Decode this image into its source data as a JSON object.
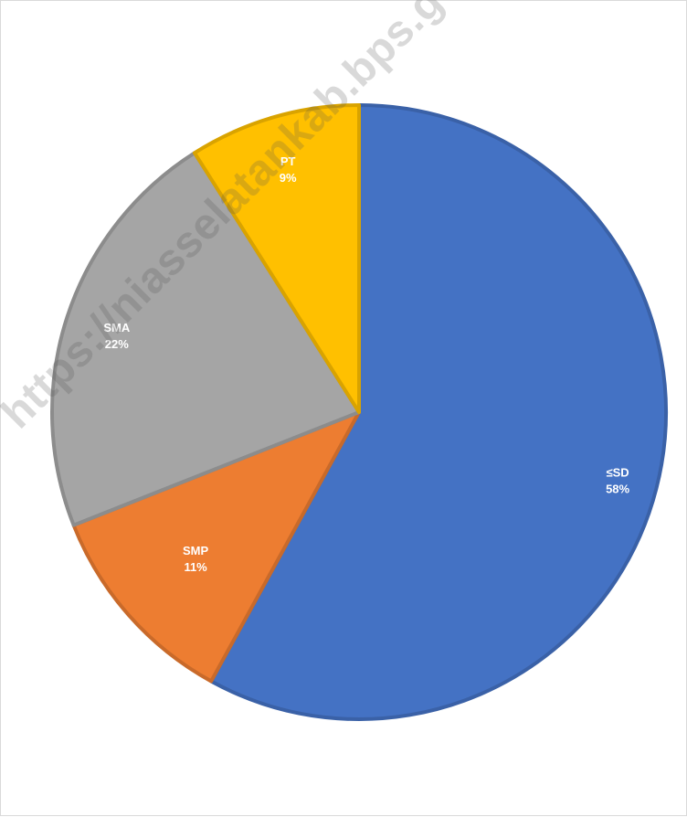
{
  "chart_data": {
    "type": "pie",
    "title": "",
    "slices": [
      {
        "name": "≤SD",
        "value": 58,
        "label": "58%",
        "color": "#4472C4"
      },
      {
        "name": "SMP",
        "value": 11,
        "label": "11%",
        "color": "#ED7D31"
      },
      {
        "name": "SMA",
        "value": 22,
        "label": "22%",
        "color": "#A5A5A5"
      },
      {
        "name": "PT",
        "value": 9,
        "label": "9%",
        "color": "#FFC000"
      }
    ],
    "start_angle_deg": 0,
    "direction": "clockwise",
    "legend": "none",
    "data_labels": "inside"
  },
  "watermark": "https://niasselatankab.bps.go.id"
}
